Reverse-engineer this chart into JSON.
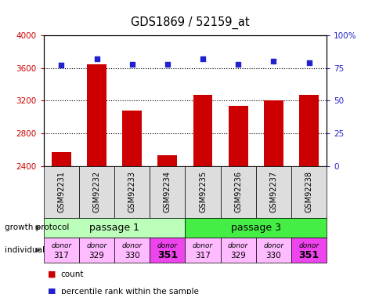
{
  "title": "GDS1869 / 52159_at",
  "samples": [
    "GSM92231",
    "GSM92232",
    "GSM92233",
    "GSM92234",
    "GSM92235",
    "GSM92236",
    "GSM92237",
    "GSM92238"
  ],
  "counts": [
    2570,
    3650,
    3080,
    2530,
    3270,
    3140,
    3200,
    3270
  ],
  "percentile_ranks": [
    77,
    82,
    78,
    78,
    82,
    78,
    80,
    79
  ],
  "ylim_left": [
    2400,
    4000
  ],
  "ylim_right": [
    0,
    100
  ],
  "yticks_left": [
    2400,
    2800,
    3200,
    3600,
    4000
  ],
  "yticks_right": [
    0,
    25,
    50,
    75,
    100
  ],
  "bar_color": "#cc0000",
  "dot_color": "#2222cc",
  "bar_bottom": 2400,
  "growth_protocol_labels": [
    "passage 1",
    "passage 3"
  ],
  "growth_protocol_colors": [
    "#bbffbb",
    "#44ee44"
  ],
  "individual_labels_top": [
    "donor",
    "donor",
    "donor",
    "donor",
    "donor",
    "donor",
    "donor",
    "donor"
  ],
  "individual_labels_bot": [
    "317",
    "329",
    "330",
    "351",
    "317",
    "329",
    "330",
    "351"
  ],
  "individual_bold": [
    false,
    false,
    false,
    true,
    false,
    false,
    false,
    true
  ],
  "individual_colors": [
    "#ffbbff",
    "#ffbbff",
    "#ffbbff",
    "#ee44ee",
    "#ffbbff",
    "#ffbbff",
    "#ffbbff",
    "#ee44ee"
  ],
  "sample_box_color": "#dddddd",
  "background_color": "#ffffff",
  "figure_width": 4.85,
  "figure_height": 3.75,
  "dpi": 100
}
